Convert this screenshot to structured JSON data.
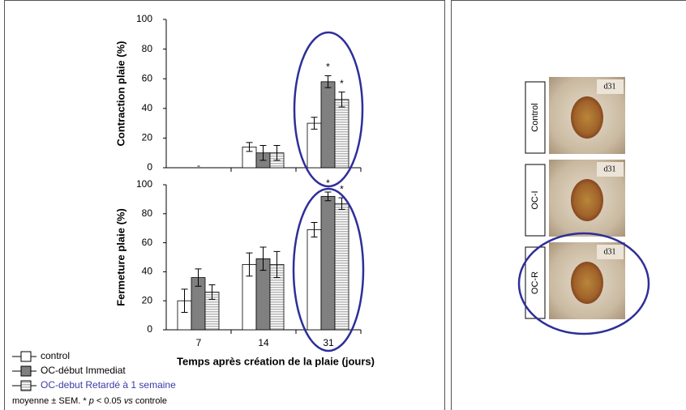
{
  "chart_data": [
    {
      "type": "bar",
      "y_label": "Contraction plaie (%)",
      "ylim": [
        0,
        100
      ],
      "yticks": [
        0,
        20,
        40,
        60,
        80,
        100
      ],
      "no_data": [
        "-",
        null,
        null
      ],
      "series": [
        {
          "name": "control",
          "color": "#ffffff",
          "values": [
            null,
            14,
            30
          ],
          "errors": [
            null,
            3,
            4
          ],
          "significance": [
            null,
            null,
            null
          ]
        },
        {
          "name": "OC-début Immediat",
          "color": "#808080",
          "values": [
            null,
            10,
            58
          ],
          "errors": [
            null,
            5,
            4
          ],
          "significance": [
            null,
            null,
            "*"
          ]
        },
        {
          "name": "OC-debut Retardé à 1 semaine",
          "color": "#d9d9d9",
          "label_color": "#3a3aa8",
          "values": [
            null,
            10,
            46
          ],
          "errors": [
            null,
            5,
            5
          ],
          "significance": [
            null,
            null,
            "*"
          ]
        }
      ]
    },
    {
      "type": "bar",
      "y_label": "Fermeture plaie (%)",
      "x_label": "Temps après création de la plaie (jours)",
      "categories": [
        "7",
        "14",
        "31"
      ],
      "ylim": [
        0,
        100
      ],
      "yticks": [
        0,
        20,
        40,
        60,
        80,
        100
      ],
      "series": [
        {
          "name": "control",
          "color": "#ffffff",
          "values": [
            20,
            45,
            69
          ],
          "errors": [
            8,
            8,
            5
          ],
          "significance": [
            null,
            null,
            null
          ]
        },
        {
          "name": "OC-début Immediat",
          "color": "#808080",
          "values": [
            36,
            49,
            92
          ],
          "errors": [
            6,
            8,
            3
          ],
          "significance": [
            null,
            null,
            "*"
          ]
        },
        {
          "name": "OC-debut Retardé à 1 semaine",
          "color": "#d9d9d9",
          "values": [
            26,
            45,
            87
          ],
          "errors": [
            5,
            9,
            4
          ],
          "significance": [
            null,
            null,
            "*"
          ]
        }
      ]
    }
  ],
  "footnote": [
    "moyenne ± SEM.  * ",
    "p",
    " < 0.05 ",
    "vs",
    " controle"
  ],
  "photos": [
    {
      "label": "Control",
      "tag": "d31"
    },
    {
      "label": "OC-I",
      "tag": "d31"
    },
    {
      "label": "OC-R",
      "tag": "d31"
    }
  ]
}
